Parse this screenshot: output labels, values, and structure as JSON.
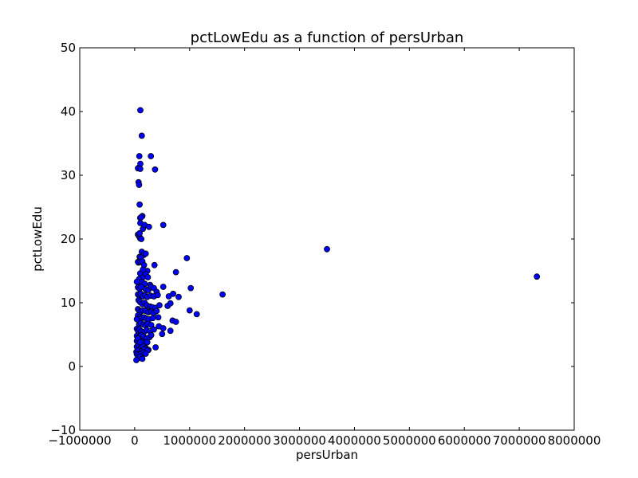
{
  "chart_data": {
    "type": "scatter",
    "title": "pctLowEdu as a function of persUrban",
    "xlabel": "persUrban",
    "ylabel": "pctLowEdu",
    "xlim": [
      -1000000,
      8000000
    ],
    "ylim": [
      -10,
      50
    ],
    "xticks": [
      -1000000,
      0,
      1000000,
      2000000,
      3000000,
      4000000,
      5000000,
      6000000,
      7000000,
      8000000
    ],
    "xtick_labels": [
      "−1000000",
      "0",
      "1000000",
      "2000000",
      "3000000",
      "4000000",
      "5000000",
      "6000000",
      "7000000",
      "8000000"
    ],
    "yticks": [
      -10,
      0,
      10,
      20,
      30,
      40,
      50
    ],
    "ytick_labels": [
      "−10",
      "0",
      "10",
      "20",
      "30",
      "40",
      "50"
    ],
    "grid": false,
    "marker_color": "#0000ff",
    "marker_edge": "#000000",
    "series": [
      {
        "x": [
          103000,
          130000,
          78000,
          295000,
          85000,
          103000,
          370000,
          60000,
          100000,
          70000,
          80000,
          90000,
          100000,
          140000,
          115000,
          103000,
          60000,
          75000,
          90000,
          100000,
          150000,
          180000,
          260000,
          520000,
          130000,
          90000,
          165000,
          110000,
          70000,
          200000,
          60000,
          100000,
          140000,
          170000,
          230000,
          360000,
          950000,
          100000,
          150000,
          200000,
          240000,
          90000,
          60000,
          80000,
          130000,
          180000,
          280000,
          750000,
          40000,
          60000,
          90000,
          120000,
          200000,
          250000,
          300000,
          350000,
          400000,
          520000,
          1020000,
          60000,
          90000,
          110000,
          150000,
          190000,
          230000,
          290000,
          350000,
          420000,
          620000,
          700000,
          800000,
          1600000,
          3500000,
          7320000,
          70000,
          100000,
          140000,
          180000,
          220000,
          280000,
          320000,
          380000,
          450000,
          600000,
          650000,
          60000,
          80000,
          110000,
          150000,
          200000,
          250000,
          300000,
          350000,
          400000,
          1000000,
          60000,
          100000,
          130000,
          170000,
          210000,
          260000,
          330000,
          430000,
          690000,
          750000,
          1130000,
          40000,
          80000,
          110000,
          160000,
          200000,
          240000,
          300000,
          440000,
          520000,
          40000,
          60000,
          90000,
          120000,
          170000,
          220000,
          280000,
          350000,
          500000,
          650000,
          40000,
          80000,
          120000,
          160000,
          210000,
          270000,
          300000,
          40000,
          60000,
          90000,
          140000,
          180000,
          230000,
          380000,
          40000,
          70000,
          110000,
          150000,
          200000,
          250000,
          30000,
          60000,
          100000,
          130000,
          180000,
          230000,
          40000,
          80000,
          120000,
          160000,
          200000,
          60000,
          100000,
          140000,
          30000,
          60000,
          100000,
          90000,
          120000,
          150000
        ],
        "y": [
          40.2,
          36.2,
          31.2,
          33.0,
          33.0,
          31.8,
          30.9,
          31.1,
          31.0,
          28.9,
          28.5,
          25.4,
          23.3,
          23.6,
          23.4,
          22.5,
          20.7,
          20.5,
          20.3,
          20.1,
          21.6,
          22.2,
          21.9,
          22.2,
          18.0,
          17.2,
          17.5,
          17.1,
          16.3,
          17.7,
          16.4,
          16.4,
          16.5,
          15.9,
          15.0,
          15.9,
          17.0,
          14.6,
          14.0,
          14.5,
          14.0,
          13.5,
          13.2,
          13.7,
          13.3,
          13.0,
          12.8,
          14.8,
          13.3,
          12.4,
          12.2,
          12.5,
          12.1,
          12.0,
          12.5,
          12.3,
          11.7,
          12.5,
          12.3,
          11.3,
          11.1,
          11.4,
          11.0,
          11.2,
          10.9,
          11.1,
          11.0,
          11.2,
          11.0,
          11.4,
          10.9,
          11.3,
          18.4,
          14.1,
          10.4,
          10.1,
          9.8,
          10.0,
          9.6,
          9.4,
          9.3,
          9.2,
          9.6,
          9.5,
          9.9,
          9.0,
          8.8,
          8.6,
          8.8,
          8.7,
          8.5,
          8.6,
          8.4,
          8.7,
          8.8,
          8.0,
          7.8,
          7.6,
          7.7,
          7.5,
          7.4,
          7.6,
          7.7,
          7.2,
          7.0,
          8.2,
          7.4,
          6.6,
          6.8,
          6.6,
          6.4,
          6.7,
          6.5,
          6.3,
          6.0,
          5.9,
          5.6,
          5.8,
          5.5,
          5.4,
          5.7,
          5.5,
          5.8,
          5.1,
          5.6,
          4.8,
          4.6,
          4.9,
          4.7,
          4.4,
          4.6,
          4.9,
          4.0,
          3.8,
          3.6,
          3.9,
          3.7,
          3.8,
          3.0,
          3.1,
          3.3,
          2.9,
          3.2,
          2.9,
          2.6,
          2.3,
          2.5,
          2.1,
          2.4,
          2.7,
          2.5,
          1.9,
          1.8,
          2.0,
          2.2,
          2.0,
          1.3,
          1.5,
          1.2,
          1.0,
          4.4,
          3.8,
          20.9,
          20.0,
          15.2
        ]
      }
    ]
  }
}
